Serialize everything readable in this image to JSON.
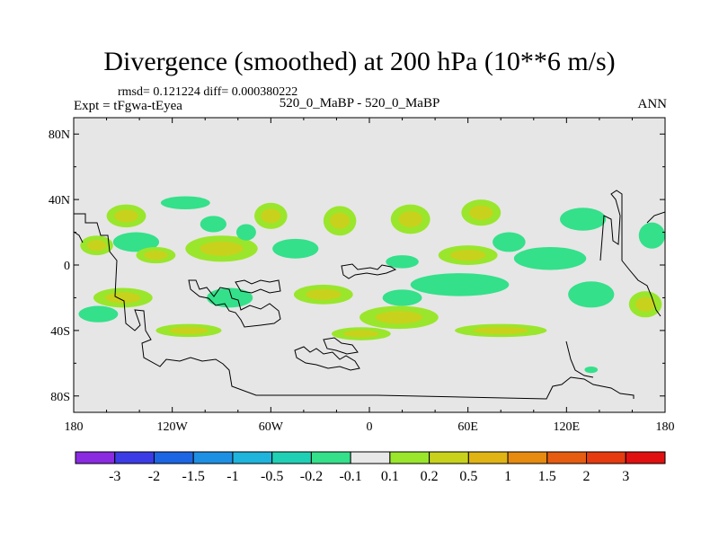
{
  "chart_data": {
    "type": "heatmap",
    "title": "Divergence (smoothed) at 200 hPa (10**6 m/s)",
    "stats": "rmsd= 0.121224 diff= 0.000380222",
    "left_label": "Expt = tFgwa-tEyea",
    "center_label": "520_0_MaBP - 520_0_MaBP",
    "right_label": "ANN",
    "x_axis": {
      "range": [
        -180,
        180
      ],
      "ticks": [
        -180,
        -120,
        -60,
        0,
        60,
        120,
        180
      ],
      "tick_labels": [
        "180",
        "120W",
        "60W",
        "0",
        "60E",
        "120E",
        "180"
      ]
    },
    "y_axis": {
      "range": [
        -90,
        90
      ],
      "ticks": [
        80,
        40,
        0,
        -40,
        -80
      ],
      "tick_labels": [
        "80N",
        "40N",
        "0",
        "40S",
        "80S"
      ]
    },
    "colorbar": {
      "labels": [
        "-3",
        "-2",
        "-1.5",
        "-1",
        "-0.5",
        "-0.2",
        "-0.1",
        "0.1",
        "0.2",
        "0.5",
        "1",
        "1.5",
        "2",
        "3"
      ],
      "colors": [
        "#8a2be2",
        "#3c3ce6",
        "#1c66e4",
        "#1e90e4",
        "#1eb4dc",
        "#20d0b4",
        "#34e08a",
        "#e8e8e8",
        "#9ae62c",
        "#c8d21c",
        "#e0b414",
        "#e68a10",
        "#e65c10",
        "#e63a10",
        "#e01010"
      ]
    },
    "field_blobs": [
      {
        "lon": -148,
        "lat": 30,
        "rlon": 12,
        "rlat": 7,
        "value": 0.3
      },
      {
        "lon": -112,
        "lat": 38,
        "rlon": 15,
        "rlat": 4,
        "value": -0.15
      },
      {
        "lon": -142,
        "lat": 14,
        "rlon": 14,
        "rlat": 6,
        "value": -0.15
      },
      {
        "lon": -166,
        "lat": 12,
        "rlon": 10,
        "rlat": 6,
        "value": 0.25
      },
      {
        "lon": -130,
        "lat": 6,
        "rlon": 12,
        "rlat": 5,
        "value": 0.3
      },
      {
        "lon": -90,
        "lat": 10,
        "rlon": 22,
        "rlat": 8,
        "value": 0.3
      },
      {
        "lon": -95,
        "lat": 25,
        "rlon": 8,
        "rlat": 5,
        "value": -0.15
      },
      {
        "lon": -60,
        "lat": 30,
        "rlon": 10,
        "rlat": 8,
        "value": 0.25
      },
      {
        "lon": -75,
        "lat": 20,
        "rlon": 6,
        "rlat": 5,
        "value": -0.2
      },
      {
        "lon": -45,
        "lat": 10,
        "rlon": 14,
        "rlat": 6,
        "value": -0.15
      },
      {
        "lon": -18,
        "lat": 27,
        "rlon": 10,
        "rlat": 9,
        "value": 0.3
      },
      {
        "lon": 25,
        "lat": 28,
        "rlon": 12,
        "rlat": 9,
        "value": 0.3
      },
      {
        "lon": 68,
        "lat": 32,
        "rlon": 12,
        "rlat": 8,
        "value": 0.3
      },
      {
        "lon": 130,
        "lat": 28,
        "rlon": 14,
        "rlat": 7,
        "value": -0.2
      },
      {
        "lon": 172,
        "lat": 18,
        "rlon": 8,
        "rlat": 8,
        "value": -0.2
      },
      {
        "lon": 85,
        "lat": 14,
        "rlon": 10,
        "rlat": 6,
        "value": -0.2
      },
      {
        "lon": 110,
        "lat": 4,
        "rlon": 22,
        "rlat": 7,
        "value": -0.2
      },
      {
        "lon": 60,
        "lat": 6,
        "rlon": 18,
        "rlat": 6,
        "value": 0.3
      },
      {
        "lon": 20,
        "lat": 2,
        "rlon": 10,
        "rlat": 4,
        "value": -0.15
      },
      {
        "lon": 55,
        "lat": -12,
        "rlon": 30,
        "rlat": 7,
        "value": -0.2
      },
      {
        "lon": 135,
        "lat": -18,
        "rlon": 14,
        "rlat": 8,
        "value": -0.15
      },
      {
        "lon": 168,
        "lat": -24,
        "rlon": 10,
        "rlat": 8,
        "value": 0.4
      },
      {
        "lon": 18,
        "lat": -32,
        "rlon": 24,
        "rlat": 7,
        "value": 0.3
      },
      {
        "lon": -28,
        "lat": -18,
        "rlon": 18,
        "rlat": 6,
        "value": 0.3
      },
      {
        "lon": -85,
        "lat": -20,
        "rlon": 14,
        "rlat": 6,
        "value": -0.15
      },
      {
        "lon": -150,
        "lat": -20,
        "rlon": 18,
        "rlat": 6,
        "value": 0.3
      },
      {
        "lon": -165,
        "lat": -30,
        "rlon": 12,
        "rlat": 5,
        "value": -0.15
      },
      {
        "lon": -110,
        "lat": -40,
        "rlon": 20,
        "rlat": 4,
        "value": 0.2
      },
      {
        "lon": -5,
        "lat": -42,
        "rlon": 18,
        "rlat": 4,
        "value": 0.2
      },
      {
        "lon": 80,
        "lat": -40,
        "rlon": 28,
        "rlat": 4,
        "value": 0.2
      },
      {
        "lon": 20,
        "lat": -20,
        "rlon": 12,
        "rlat": 5,
        "value": -0.15
      },
      {
        "lon": 135,
        "lat": -64,
        "rlon": 4,
        "rlat": 2,
        "value": -0.15
      }
    ]
  }
}
